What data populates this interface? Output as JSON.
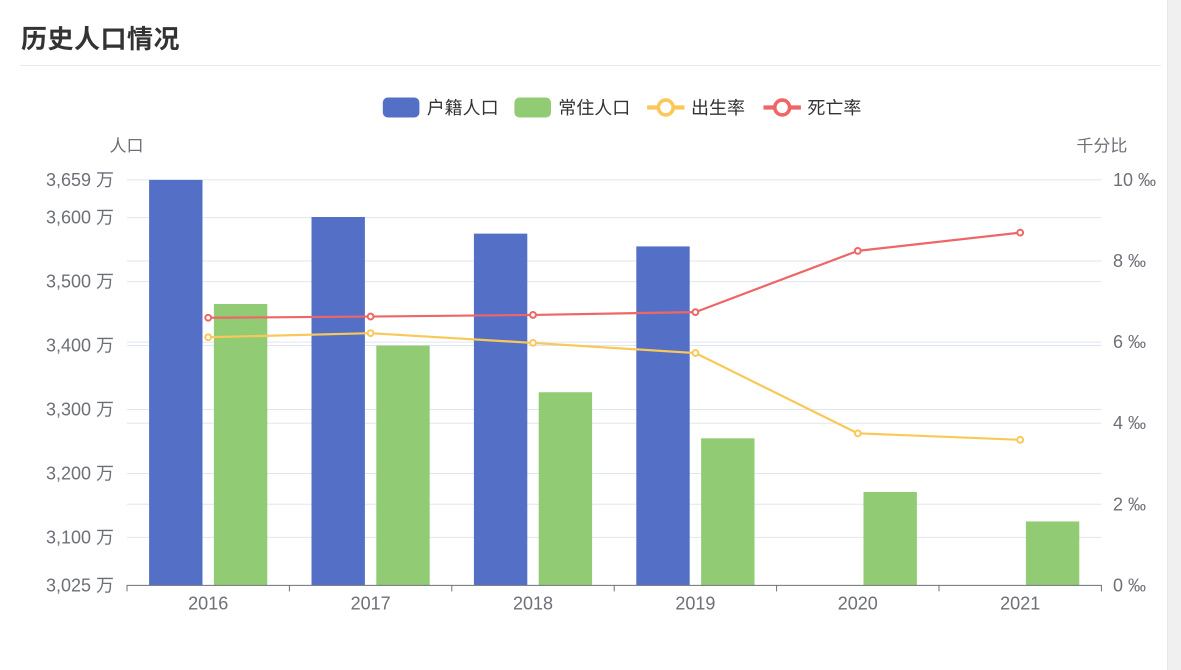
{
  "page": {
    "title": "历史人口情况"
  },
  "chart_data": {
    "type": "bar",
    "subtype": "bar-line-combo",
    "title": "历史人口情况",
    "categories": [
      "2016",
      "2017",
      "2018",
      "2019",
      "2020",
      "2021"
    ],
    "series": [
      {
        "key": "registered-population",
        "name": "户籍人口",
        "type": "bar",
        "axis": "left",
        "color": "#5470C6",
        "values": [
          3659,
          3601,
          3575,
          3555,
          null,
          null
        ]
      },
      {
        "key": "resident-population",
        "name": "常住人口",
        "type": "bar",
        "axis": "left",
        "color": "#91CC75",
        "values": [
          3465,
          3400,
          3327,
          3255,
          3171,
          3125
        ]
      },
      {
        "key": "birth-rate",
        "name": "出生率",
        "type": "line",
        "axis": "right",
        "color": "#FAC858",
        "values": [
          6.12,
          6.22,
          5.98,
          5.73,
          3.75,
          3.59
        ]
      },
      {
        "key": "death-rate",
        "name": "死亡率",
        "type": "line",
        "axis": "right",
        "color": "#EE6666",
        "values": [
          6.6,
          6.63,
          6.67,
          6.74,
          8.25,
          8.7
        ]
      }
    ],
    "y_axis_left": {
      "name": "人口",
      "unit": "万",
      "min": 3025,
      "max": 3659,
      "ticks": [
        3025,
        3100,
        3200,
        3300,
        3400,
        3500,
        3600,
        3659
      ]
    },
    "y_axis_right": {
      "name": "千分比",
      "unit": "‰",
      "min": 0,
      "max": 10,
      "ticks": [
        0,
        2,
        4,
        6,
        8,
        10
      ]
    },
    "xlabel": "",
    "ylabel": "人口",
    "legend_position": "top",
    "grid": true,
    "colors": {
      "axis_label": "#6E7079",
      "axis_line": "#6E7079",
      "grid_line": "#E0E6F1",
      "legend_text": "#333333",
      "title_text": "#333333"
    }
  }
}
